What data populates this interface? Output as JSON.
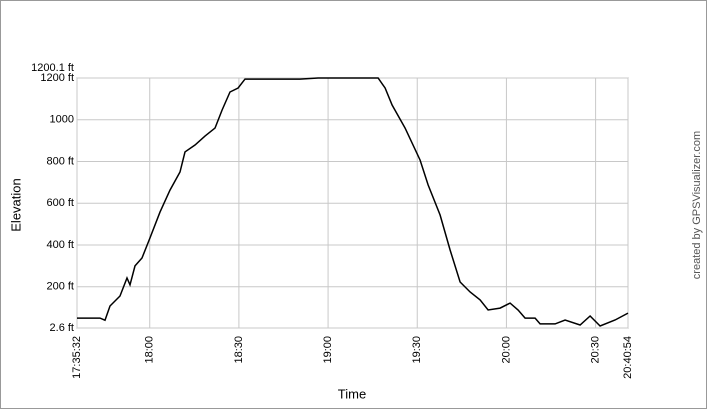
{
  "chart_data": {
    "type": "line",
    "x_label": "Time",
    "y_label": "Elevation",
    "credit": "created by GPSVisualizer.com",
    "x": [
      "17:35:32",
      "17:43:16",
      "17:44:57",
      "17:46:38",
      "17:50:00",
      "17:52:22",
      "17:53:22",
      "17:55:03",
      "17:57:24",
      "18:00:06",
      "18:03:28",
      "18:06:50",
      "18:10:12",
      "18:11:53",
      "18:15:14",
      "18:18:36",
      "18:21:58",
      "18:24:20",
      "18:27:01",
      "18:29:43",
      "18:32:04",
      "18:50:34",
      "18:56:38",
      "19:16:49",
      "19:19:11",
      "19:21:32",
      "19:25:54",
      "19:30:57",
      "19:33:39",
      "19:37:41",
      "19:41:03",
      "19:44:25",
      "19:47:47",
      "19:51:09",
      "19:53:50",
      "19:57:52",
      "20:01:14",
      "20:03:56",
      "20:06:17",
      "20:09:39",
      "20:11:20",
      "20:16:23",
      "20:19:45",
      "20:24:47",
      "20:28:09",
      "20:31:31",
      "20:36:34",
      "20:40:54"
    ],
    "series": [
      {
        "name": "Elevation",
        "color": "#000000",
        "values": [
          50,
          50,
          40,
          108,
          156,
          242,
          209,
          300,
          338,
          434,
          558,
          663,
          750,
          846,
          879,
          922,
          960,
          1047,
          1133,
          1152,
          1195,
          1195,
          1200,
          1200,
          1152,
          1071,
          960,
          807,
          688,
          544,
          376,
          223,
          175,
          137,
          89,
          98,
          122,
          89,
          50,
          50,
          22,
          22,
          41,
          17,
          60,
          12,
          41,
          74
        ]
      }
    ],
    "xlim": [
      "17:35:32",
      "20:40:54"
    ],
    "xticks": [
      "17:35:32",
      "18:00",
      "18:30",
      "19:00",
      "19:30",
      "20:00",
      "20:30",
      "20:40:54"
    ],
    "ylim": [
      2.6,
      1200.1
    ],
    "yticks": [
      {
        "value": 2.6,
        "label": "2.6 ft"
      },
      {
        "value": 200,
        "label": "200 ft"
      },
      {
        "value": 400,
        "label": "400 ft"
      },
      {
        "value": 600,
        "label": "600 ft"
      },
      {
        "value": 800,
        "label": "800 ft"
      },
      1000,
      {
        "value": 1200,
        "label": "1200 ft"
      },
      {
        "value": 1200.1,
        "label": "1200.1 ft"
      }
    ],
    "grid": true
  }
}
